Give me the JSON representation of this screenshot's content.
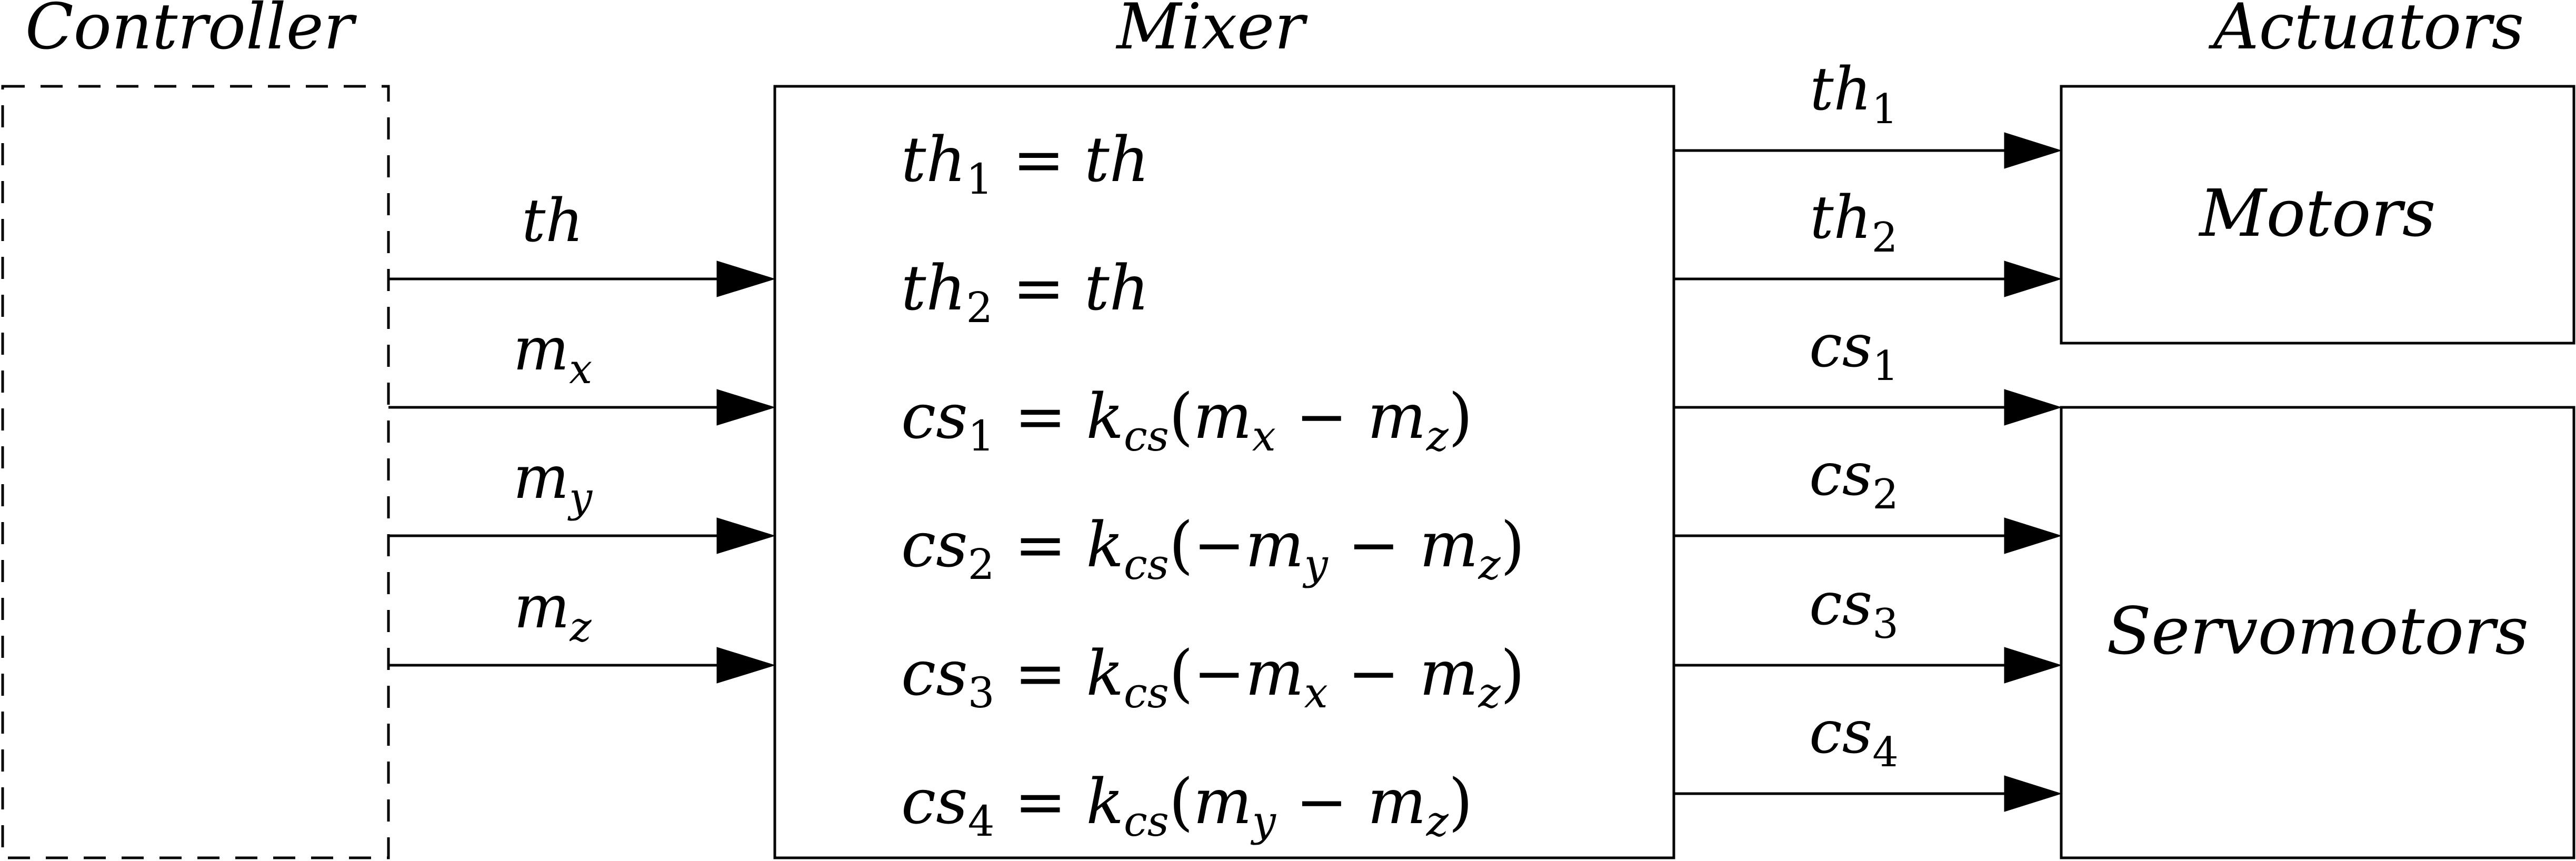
{
  "titles": {
    "controller": "Controller",
    "mixer": "Mixer",
    "actuators": "Actuators"
  },
  "blocks": {
    "motors": "Motors",
    "servomotors": "Servomotors"
  },
  "inputs": [
    "th",
    "m_x",
    "m_y",
    "m_z"
  ],
  "equations": [
    "th_1 = th",
    "th_2 = th",
    "cs_1 = k_cs(m_x − m_z)",
    "cs_2 = k_cs(−m_y − m_z)",
    "cs_3 = k_cs(−m_x − m_z)",
    "cs_4 = k_cs(m_y − m_z)"
  ],
  "outputs": [
    "th_1",
    "th_2",
    "cs_1",
    "cs_2",
    "cs_3",
    "cs_4"
  ]
}
